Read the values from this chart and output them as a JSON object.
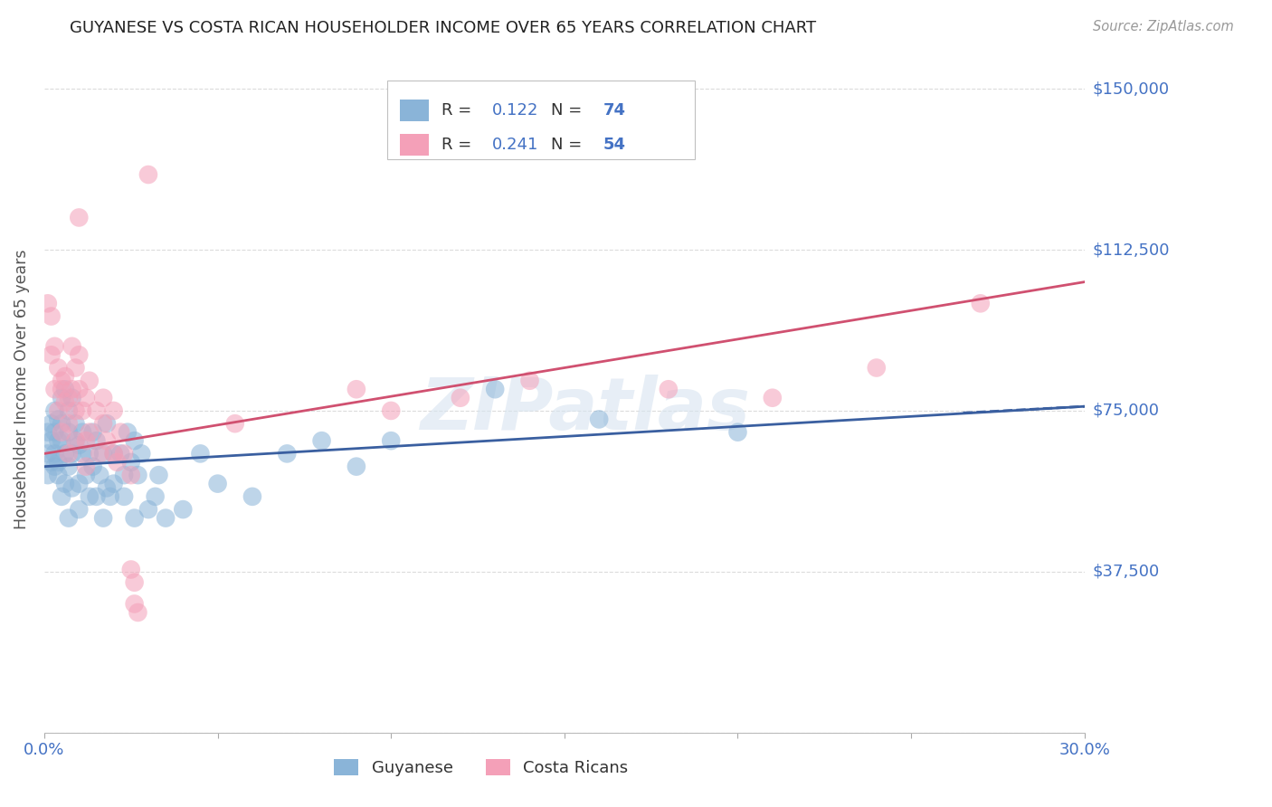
{
  "title": "GUYANESE VS COSTA RICAN HOUSEHOLDER INCOME OVER 65 YEARS CORRELATION CHART",
  "source": "Source: ZipAtlas.com",
  "ylabel": "Householder Income Over 65 years",
  "xlim": [
    0.0,
    0.3
  ],
  "ylim": [
    0,
    160000
  ],
  "yticks": [
    0,
    37500,
    75000,
    112500,
    150000
  ],
  "ytick_labels": [
    "",
    "$37,500",
    "$75,000",
    "$112,500",
    "$150,000"
  ],
  "xtick_positions": [
    0.0,
    0.05,
    0.1,
    0.15,
    0.2,
    0.25,
    0.3
  ],
  "xtick_labels": [
    "0.0%",
    "",
    "",
    "",
    "",
    "",
    "30.0%"
  ],
  "watermark": "ZIPatlas",
  "guyanese_color": "#8ab4d8",
  "costa_rican_color": "#f4a0b8",
  "guyanese_line_color": "#3a5fa0",
  "costa_rican_line_color": "#d05070",
  "blue_line_x": [
    0.0,
    0.3
  ],
  "blue_line_y": [
    62000,
    76000
  ],
  "pink_line_x": [
    0.0,
    0.3
  ],
  "pink_line_y": [
    65000,
    105000
  ],
  "blue_scatter": [
    [
      0.001,
      65000
    ],
    [
      0.001,
      60000
    ],
    [
      0.001,
      70000
    ],
    [
      0.002,
      72000
    ],
    [
      0.002,
      68000
    ],
    [
      0.002,
      63000
    ],
    [
      0.003,
      75000
    ],
    [
      0.003,
      70000
    ],
    [
      0.003,
      65000
    ],
    [
      0.003,
      62000
    ],
    [
      0.004,
      60000
    ],
    [
      0.004,
      73000
    ],
    [
      0.004,
      68000
    ],
    [
      0.004,
      63000
    ],
    [
      0.005,
      78000
    ],
    [
      0.005,
      72000
    ],
    [
      0.005,
      55000
    ],
    [
      0.005,
      68000
    ],
    [
      0.006,
      80000
    ],
    [
      0.006,
      65000
    ],
    [
      0.006,
      58000
    ],
    [
      0.007,
      70000
    ],
    [
      0.007,
      75000
    ],
    [
      0.007,
      62000
    ],
    [
      0.007,
      50000
    ],
    [
      0.008,
      65000
    ],
    [
      0.008,
      78000
    ],
    [
      0.008,
      57000
    ],
    [
      0.009,
      68000
    ],
    [
      0.009,
      72000
    ],
    [
      0.01,
      58000
    ],
    [
      0.01,
      67000
    ],
    [
      0.01,
      52000
    ],
    [
      0.011,
      65000
    ],
    [
      0.011,
      70000
    ],
    [
      0.012,
      60000
    ],
    [
      0.013,
      65000
    ],
    [
      0.013,
      55000
    ],
    [
      0.014,
      70000
    ],
    [
      0.014,
      62000
    ],
    [
      0.015,
      55000
    ],
    [
      0.015,
      68000
    ],
    [
      0.016,
      60000
    ],
    [
      0.017,
      65000
    ],
    [
      0.017,
      50000
    ],
    [
      0.018,
      57000
    ],
    [
      0.018,
      72000
    ],
    [
      0.019,
      55000
    ],
    [
      0.02,
      65000
    ],
    [
      0.02,
      58000
    ],
    [
      0.022,
      65000
    ],
    [
      0.023,
      60000
    ],
    [
      0.023,
      55000
    ],
    [
      0.024,
      70000
    ],
    [
      0.025,
      63000
    ],
    [
      0.026,
      68000
    ],
    [
      0.026,
      50000
    ],
    [
      0.027,
      60000
    ],
    [
      0.028,
      65000
    ],
    [
      0.03,
      52000
    ],
    [
      0.032,
      55000
    ],
    [
      0.033,
      60000
    ],
    [
      0.035,
      50000
    ],
    [
      0.04,
      52000
    ],
    [
      0.045,
      65000
    ],
    [
      0.05,
      58000
    ],
    [
      0.06,
      55000
    ],
    [
      0.07,
      65000
    ],
    [
      0.08,
      68000
    ],
    [
      0.09,
      62000
    ],
    [
      0.1,
      68000
    ],
    [
      0.13,
      80000
    ],
    [
      0.16,
      73000
    ],
    [
      0.2,
      70000
    ]
  ],
  "pink_scatter": [
    [
      0.001,
      100000
    ],
    [
      0.002,
      97000
    ],
    [
      0.002,
      88000
    ],
    [
      0.003,
      90000
    ],
    [
      0.003,
      80000
    ],
    [
      0.004,
      75000
    ],
    [
      0.004,
      85000
    ],
    [
      0.005,
      80000
    ],
    [
      0.005,
      70000
    ],
    [
      0.005,
      82000
    ],
    [
      0.006,
      77000
    ],
    [
      0.006,
      83000
    ],
    [
      0.007,
      72000
    ],
    [
      0.007,
      78000
    ],
    [
      0.007,
      65000
    ],
    [
      0.008,
      80000
    ],
    [
      0.008,
      90000
    ],
    [
      0.009,
      75000
    ],
    [
      0.009,
      85000
    ],
    [
      0.009,
      68000
    ],
    [
      0.01,
      80000
    ],
    [
      0.01,
      88000
    ],
    [
      0.01,
      120000
    ],
    [
      0.011,
      75000
    ],
    [
      0.012,
      68000
    ],
    [
      0.012,
      62000
    ],
    [
      0.012,
      78000
    ],
    [
      0.013,
      82000
    ],
    [
      0.013,
      70000
    ],
    [
      0.015,
      75000
    ],
    [
      0.016,
      65000
    ],
    [
      0.017,
      72000
    ],
    [
      0.017,
      78000
    ],
    [
      0.018,
      68000
    ],
    [
      0.02,
      65000
    ],
    [
      0.02,
      75000
    ],
    [
      0.021,
      63000
    ],
    [
      0.022,
      70000
    ],
    [
      0.023,
      65000
    ],
    [
      0.025,
      60000
    ],
    [
      0.025,
      38000
    ],
    [
      0.026,
      35000
    ],
    [
      0.026,
      30000
    ],
    [
      0.027,
      28000
    ],
    [
      0.055,
      72000
    ],
    [
      0.09,
      80000
    ],
    [
      0.1,
      75000
    ],
    [
      0.12,
      78000
    ],
    [
      0.14,
      82000
    ],
    [
      0.18,
      80000
    ],
    [
      0.21,
      78000
    ],
    [
      0.24,
      85000
    ],
    [
      0.27,
      100000
    ],
    [
      0.03,
      130000
    ]
  ],
  "background_color": "#ffffff",
  "axis_label_color": "#555555",
  "tick_color": "#4472c4",
  "grid_color": "#cccccc",
  "grid_alpha": 0.7
}
